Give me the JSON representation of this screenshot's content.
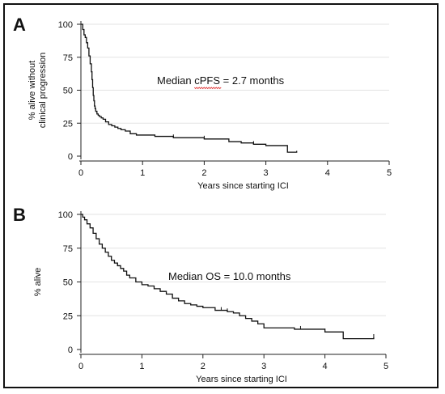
{
  "chart_data": [
    {
      "type": "line",
      "step": true,
      "panel_label": "A",
      "title": "",
      "xlabel": "Years since starting ICI",
      "ylabel_lines": [
        "% alive without",
        "clinical progression"
      ],
      "xlim": [
        0,
        5
      ],
      "ylim": [
        0,
        100
      ],
      "x_ticks": [
        "0",
        "1",
        "2",
        "3",
        "4",
        "5"
      ],
      "y_ticks": [
        "0",
        "25",
        "50",
        "75",
        "100"
      ],
      "grid": "horizontal",
      "annotation": "Median cPFS = 2.7 months",
      "annotation_underlined": "cPFS",
      "series": [
        {
          "x": [
            0,
            0.03,
            0.05,
            0.07,
            0.09,
            0.11,
            0.13,
            0.15,
            0.17,
            0.18,
            0.19,
            0.2,
            0.21,
            0.22,
            0.23,
            0.24,
            0.26,
            0.28,
            0.3,
            0.33,
            0.36,
            0.4,
            0.45,
            0.5,
            0.55,
            0.6,
            0.65,
            0.72,
            0.8,
            0.9,
            1.2,
            1.5,
            2.0,
            2.4,
            2.6,
            2.8,
            3.0,
            3.2,
            3.3,
            3.35,
            3.45,
            3.5
          ],
          "y": [
            100,
            96,
            92,
            90,
            86,
            82,
            76,
            70,
            64,
            58,
            52,
            46,
            42,
            38,
            36,
            34,
            32,
            31,
            30,
            29,
            28,
            26,
            24,
            23,
            22,
            21,
            20,
            19,
            17,
            16,
            15,
            14,
            13,
            11,
            10,
            9,
            8,
            8,
            8,
            3,
            3,
            4
          ],
          "censor_x": [
            1.5,
            2.0,
            2.8
          ]
        }
      ]
    },
    {
      "type": "line",
      "step": true,
      "panel_label": "B",
      "title": "",
      "xlabel": "Years since starting ICI",
      "ylabel_lines": [
        "% alive"
      ],
      "xlim": [
        0,
        5
      ],
      "ylim": [
        0,
        100
      ],
      "x_ticks": [
        "0",
        "1",
        "2",
        "3",
        "4",
        "5"
      ],
      "y_ticks": [
        "0",
        "25",
        "50",
        "75",
        "100"
      ],
      "grid": "horizontal",
      "annotation": "Median OS = 10.0 months",
      "series": [
        {
          "x": [
            0,
            0.03,
            0.06,
            0.1,
            0.15,
            0.2,
            0.25,
            0.3,
            0.35,
            0.4,
            0.45,
            0.5,
            0.55,
            0.6,
            0.65,
            0.7,
            0.75,
            0.8,
            0.9,
            1.0,
            1.1,
            1.2,
            1.3,
            1.4,
            1.5,
            1.6,
            1.7,
            1.8,
            1.9,
            2.0,
            2.2,
            2.4,
            2.5,
            2.6,
            2.7,
            2.8,
            2.9,
            3.0,
            3.5,
            4.0,
            4.3,
            4.8
          ],
          "y": [
            100,
            98,
            96,
            93,
            90,
            86,
            82,
            78,
            75,
            72,
            69,
            66,
            64,
            62,
            60,
            58,
            55,
            53,
            50,
            48,
            47,
            45,
            43,
            41,
            38,
            36,
            34,
            33,
            32,
            31,
            29,
            28,
            27,
            25,
            23,
            21,
            19,
            16,
            15,
            13,
            8,
            9
          ],
          "censor_x": [
            0.6,
            1.5,
            2.3,
            2.4,
            3.6,
            4.0,
            4.8
          ]
        }
      ]
    }
  ]
}
